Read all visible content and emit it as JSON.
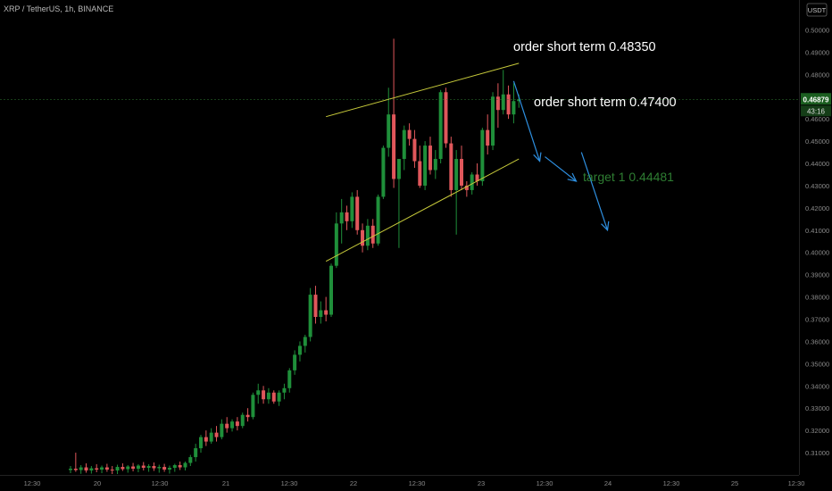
{
  "header": {
    "title": "XRP / TetherUS, 1h, BINANCE",
    "currency_button": "USDT"
  },
  "annotations": {
    "order1": "order short term  0.48350",
    "order2": "order short term  0.47400",
    "target": "target  1   0.44481"
  },
  "price_axis": {
    "current_price": "0.46879",
    "countdown": "43:16",
    "ticks": [
      "0.50000",
      "0.49000",
      "0.48000",
      "0.47000",
      "0.46000",
      "0.45000",
      "0.44000",
      "0.43000",
      "0.42000",
      "0.41000",
      "0.40000",
      "0.39000",
      "0.38000",
      "0.37000",
      "0.36000",
      "0.35000",
      "0.34000",
      "0.33000",
      "0.32000",
      "0.31000"
    ]
  },
  "time_axis": {
    "ticks": [
      "12:30",
      "20",
      "12:30",
      "21",
      "12:30",
      "22",
      "12:30",
      "23",
      "12:30",
      "24",
      "12:30",
      "25",
      "12:30"
    ]
  },
  "colors": {
    "background": "#000000",
    "up": "#1f8f3a",
    "down": "#e0575b",
    "channel": "#c6c93a",
    "arrow": "#2e8fe0",
    "target_text": "#2e7d32",
    "price_badge": "#1b5e20"
  },
  "chart_data": {
    "type": "candlestick",
    "symbol": "XRP / TetherUS",
    "interval": "1h",
    "exchange": "BINANCE",
    "ylim": [
      0.3,
      0.505
    ],
    "candles": [
      {
        "o": 0.3022,
        "h": 0.304,
        "l": 0.3008,
        "c": 0.3028
      },
      {
        "o": 0.3028,
        "h": 0.31,
        "l": 0.3014,
        "c": 0.3022
      },
      {
        "o": 0.3022,
        "h": 0.3044,
        "l": 0.3005,
        "c": 0.3034
      },
      {
        "o": 0.3034,
        "h": 0.3052,
        "l": 0.301,
        "c": 0.302
      },
      {
        "o": 0.302,
        "h": 0.304,
        "l": 0.3006,
        "c": 0.303
      },
      {
        "o": 0.303,
        "h": 0.3048,
        "l": 0.3012,
        "c": 0.3024
      },
      {
        "o": 0.3024,
        "h": 0.3042,
        "l": 0.3008,
        "c": 0.3034
      },
      {
        "o": 0.3034,
        "h": 0.305,
        "l": 0.3014,
        "c": 0.3024
      },
      {
        "o": 0.3024,
        "h": 0.304,
        "l": 0.3004,
        "c": 0.302
      },
      {
        "o": 0.302,
        "h": 0.3046,
        "l": 0.3004,
        "c": 0.3036
      },
      {
        "o": 0.3036,
        "h": 0.3052,
        "l": 0.3018,
        "c": 0.3026
      },
      {
        "o": 0.3026,
        "h": 0.3044,
        "l": 0.301,
        "c": 0.3038
      },
      {
        "o": 0.3038,
        "h": 0.3054,
        "l": 0.3016,
        "c": 0.3028
      },
      {
        "o": 0.3028,
        "h": 0.3048,
        "l": 0.3012,
        "c": 0.3042
      },
      {
        "o": 0.3042,
        "h": 0.3058,
        "l": 0.302,
        "c": 0.3032
      },
      {
        "o": 0.3032,
        "h": 0.3048,
        "l": 0.3014,
        "c": 0.304
      },
      {
        "o": 0.304,
        "h": 0.3056,
        "l": 0.3018,
        "c": 0.303
      },
      {
        "o": 0.303,
        "h": 0.3046,
        "l": 0.301,
        "c": 0.3036
      },
      {
        "o": 0.3036,
        "h": 0.305,
        "l": 0.3014,
        "c": 0.3024
      },
      {
        "o": 0.3024,
        "h": 0.3042,
        "l": 0.3006,
        "c": 0.3032
      },
      {
        "o": 0.3032,
        "h": 0.305,
        "l": 0.3014,
        "c": 0.3044
      },
      {
        "o": 0.3044,
        "h": 0.306,
        "l": 0.3022,
        "c": 0.3034
      },
      {
        "o": 0.3034,
        "h": 0.306,
        "l": 0.302,
        "c": 0.3054
      },
      {
        "o": 0.3054,
        "h": 0.309,
        "l": 0.304,
        "c": 0.308
      },
      {
        "o": 0.308,
        "h": 0.314,
        "l": 0.306,
        "c": 0.312
      },
      {
        "o": 0.312,
        "h": 0.318,
        "l": 0.31,
        "c": 0.317
      },
      {
        "o": 0.317,
        "h": 0.32,
        "l": 0.313,
        "c": 0.315
      },
      {
        "o": 0.315,
        "h": 0.321,
        "l": 0.314,
        "c": 0.319
      },
      {
        "o": 0.319,
        "h": 0.322,
        "l": 0.315,
        "c": 0.317
      },
      {
        "o": 0.317,
        "h": 0.325,
        "l": 0.316,
        "c": 0.323
      },
      {
        "o": 0.323,
        "h": 0.326,
        "l": 0.319,
        "c": 0.321
      },
      {
        "o": 0.321,
        "h": 0.325,
        "l": 0.3195,
        "c": 0.324
      },
      {
        "o": 0.324,
        "h": 0.326,
        "l": 0.32,
        "c": 0.322
      },
      {
        "o": 0.322,
        "h": 0.328,
        "l": 0.321,
        "c": 0.327
      },
      {
        "o": 0.327,
        "h": 0.33,
        "l": 0.324,
        "c": 0.326
      },
      {
        "o": 0.326,
        "h": 0.337,
        "l": 0.325,
        "c": 0.336
      },
      {
        "o": 0.336,
        "h": 0.341,
        "l": 0.332,
        "c": 0.338
      },
      {
        "o": 0.338,
        "h": 0.34,
        "l": 0.332,
        "c": 0.334
      },
      {
        "o": 0.334,
        "h": 0.339,
        "l": 0.332,
        "c": 0.337
      },
      {
        "o": 0.337,
        "h": 0.338,
        "l": 0.332,
        "c": 0.333
      },
      {
        "o": 0.333,
        "h": 0.338,
        "l": 0.331,
        "c": 0.337
      },
      {
        "o": 0.337,
        "h": 0.341,
        "l": 0.334,
        "c": 0.339
      },
      {
        "o": 0.339,
        "h": 0.348,
        "l": 0.337,
        "c": 0.347
      },
      {
        "o": 0.347,
        "h": 0.356,
        "l": 0.345,
        "c": 0.354
      },
      {
        "o": 0.354,
        "h": 0.36,
        "l": 0.351,
        "c": 0.358
      },
      {
        "o": 0.358,
        "h": 0.363,
        "l": 0.355,
        "c": 0.362
      },
      {
        "o": 0.362,
        "h": 0.384,
        "l": 0.36,
        "c": 0.381
      },
      {
        "o": 0.381,
        "h": 0.385,
        "l": 0.368,
        "c": 0.371
      },
      {
        "o": 0.371,
        "h": 0.378,
        "l": 0.368,
        "c": 0.374
      },
      {
        "o": 0.374,
        "h": 0.38,
        "l": 0.369,
        "c": 0.372
      },
      {
        "o": 0.372,
        "h": 0.395,
        "l": 0.371,
        "c": 0.394
      },
      {
        "o": 0.394,
        "h": 0.418,
        "l": 0.393,
        "c": 0.413
      },
      {
        "o": 0.413,
        "h": 0.424,
        "l": 0.404,
        "c": 0.418
      },
      {
        "o": 0.418,
        "h": 0.421,
        "l": 0.41,
        "c": 0.414
      },
      {
        "o": 0.414,
        "h": 0.427,
        "l": 0.411,
        "c": 0.425
      },
      {
        "o": 0.425,
        "h": 0.428,
        "l": 0.408,
        "c": 0.41
      },
      {
        "o": 0.41,
        "h": 0.413,
        "l": 0.4,
        "c": 0.403
      },
      {
        "o": 0.403,
        "h": 0.415,
        "l": 0.401,
        "c": 0.412
      },
      {
        "o": 0.412,
        "h": 0.415,
        "l": 0.402,
        "c": 0.404
      },
      {
        "o": 0.404,
        "h": 0.426,
        "l": 0.403,
        "c": 0.425
      },
      {
        "o": 0.425,
        "h": 0.448,
        "l": 0.424,
        "c": 0.447
      },
      {
        "o": 0.447,
        "h": 0.474,
        "l": 0.443,
        "c": 0.462
      },
      {
        "o": 0.462,
        "h": 0.496,
        "l": 0.429,
        "c": 0.433
      },
      {
        "o": 0.433,
        "h": 0.441,
        "l": 0.402,
        "c": 0.442
      },
      {
        "o": 0.442,
        "h": 0.457,
        "l": 0.437,
        "c": 0.455
      },
      {
        "o": 0.455,
        "h": 0.458,
        "l": 0.448,
        "c": 0.451
      },
      {
        "o": 0.451,
        "h": 0.455,
        "l": 0.438,
        "c": 0.441
      },
      {
        "o": 0.441,
        "h": 0.448,
        "l": 0.429,
        "c": 0.43
      },
      {
        "o": 0.43,
        "h": 0.45,
        "l": 0.428,
        "c": 0.448
      },
      {
        "o": 0.448,
        "h": 0.452,
        "l": 0.435,
        "c": 0.437
      },
      {
        "o": 0.437,
        "h": 0.446,
        "l": 0.433,
        "c": 0.442
      },
      {
        "o": 0.442,
        "h": 0.473,
        "l": 0.44,
        "c": 0.472
      },
      {
        "o": 0.472,
        "h": 0.474,
        "l": 0.447,
        "c": 0.449
      },
      {
        "o": 0.449,
        "h": 0.452,
        "l": 0.425,
        "c": 0.428
      },
      {
        "o": 0.428,
        "h": 0.446,
        "l": 0.408,
        "c": 0.442
      },
      {
        "o": 0.442,
        "h": 0.448,
        "l": 0.428,
        "c": 0.43
      },
      {
        "o": 0.43,
        "h": 0.432,
        "l": 0.425,
        "c": 0.428
      },
      {
        "o": 0.428,
        "h": 0.436,
        "l": 0.426,
        "c": 0.435
      },
      {
        "o": 0.435,
        "h": 0.44,
        "l": 0.43,
        "c": 0.432
      },
      {
        "o": 0.432,
        "h": 0.456,
        "l": 0.43,
        "c": 0.455
      },
      {
        "o": 0.455,
        "h": 0.462,
        "l": 0.444,
        "c": 0.448
      },
      {
        "o": 0.448,
        "h": 0.472,
        "l": 0.446,
        "c": 0.47
      },
      {
        "o": 0.47,
        "h": 0.476,
        "l": 0.456,
        "c": 0.464
      },
      {
        "o": 0.464,
        "h": 0.482,
        "l": 0.462,
        "c": 0.471
      },
      {
        "o": 0.471,
        "h": 0.475,
        "l": 0.46,
        "c": 0.462
      },
      {
        "o": 0.462,
        "h": 0.476,
        "l": 0.458,
        "c": 0.468
      },
      {
        "o": 0.468,
        "h": 0.471,
        "l": 0.465,
        "c": 0.4688
      }
    ],
    "channel": {
      "upper": [
        [
          49,
          0.461
        ],
        [
          86,
          0.485
        ]
      ],
      "lower": [
        [
          49,
          0.396
        ],
        [
          86,
          0.442
        ]
      ]
    },
    "arrows": [
      [
        [
          85,
          0.477
        ],
        [
          90,
          0.441
        ]
      ],
      [
        [
          91,
          0.443
        ],
        [
          97,
          0.432
        ]
      ],
      [
        [
          98,
          0.445
        ],
        [
          103,
          0.41
        ]
      ]
    ]
  }
}
